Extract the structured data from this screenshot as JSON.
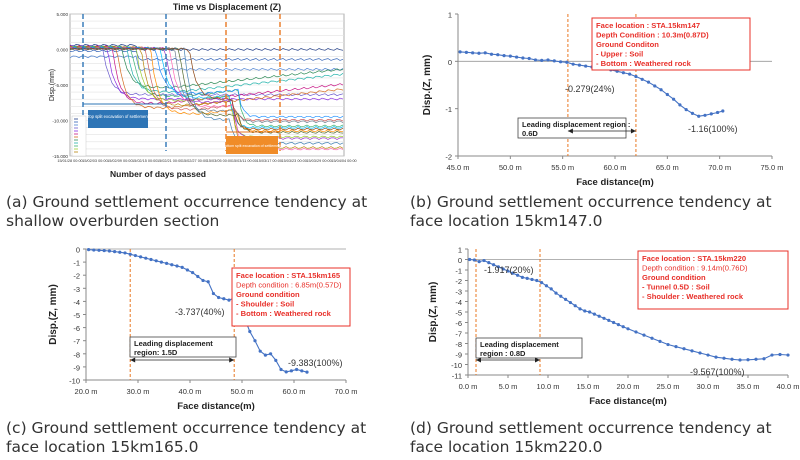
{
  "captions": {
    "a": "(a) Ground settlement occurrence tendency at shallow overburden section",
    "b": "(b) Ground settlement occurrence tendency at face location 15km147.0",
    "c": "(c) Ground settlement occurrence tendency at face location 15km165.0",
    "d": "(d) Ground settlement occurrence tendency at face location 15km220.0"
  },
  "colors": {
    "series": "#4472c4",
    "annotation_red": "#e8302a",
    "dashed_orange": "#e87722",
    "label_box_blue": "#2e75b6",
    "label_box_orange": "#f08c28"
  },
  "chart_data": [
    {
      "id": "a",
      "type": "line",
      "title": "Time vs Displacement (Z)",
      "xlabel": "Number of days passed",
      "ylabel": "Disp.(mm)",
      "ylim": [
        -15,
        5
      ],
      "y_ticks": [
        "5.000",
        "0.000",
        "-5.000",
        "-10.000",
        "-15.000"
      ],
      "x_ticks": [
        "15/01/28 00:00",
        "15/02/03 00:00",
        "15/02/09 00:00",
        "15/02/15 00:00",
        "15/02/21 00:00",
        "15/02/27 00:00",
        "15/03/05 00:00",
        "15/03/11 00:00",
        "15/03/17 00:00",
        "15/03/23 00:00",
        "15/03/29 00:00",
        "15/04/04 00:00"
      ],
      "annotations": [
        "Top split excavation of settlement",
        "Bottom split excavation of settlement"
      ],
      "legend_position": "bottom-left",
      "series_count": 22,
      "grid": true
    },
    {
      "id": "b",
      "type": "scatter-line",
      "xlabel": "Face distance(m)",
      "ylabel": "Disp.(Z, mm)",
      "xlim": [
        45,
        75
      ],
      "ylim": [
        -2,
        1
      ],
      "x_ticks": [
        "45.0 m",
        "50.0 m",
        "55.0 m",
        "60.0 m",
        "65.0 m",
        "70.0 m",
        "75.0 m"
      ],
      "y_ticks": [
        "1",
        "0",
        "-1",
        "-2"
      ],
      "info_box": [
        "Face location : STA.15km147",
        "Depth Condition : 10.3m(0.87D)",
        "Ground Conditon",
        "- Upper : Soil",
        "- Bottom : Weathered rock"
      ],
      "labels": {
        "mid": "-0.279(24%)",
        "end": "-1.16(100%)"
      },
      "leading_label": [
        "Leading displacement region :",
        "0.6D"
      ],
      "dashed_x": [
        55.5,
        62.0
      ],
      "x": [
        45.2,
        45.8,
        46.4,
        47.0,
        47.6,
        48.2,
        48.8,
        49.4,
        50.0,
        50.6,
        51.2,
        51.8,
        52.4,
        53.0,
        53.6,
        54.2,
        54.8,
        55.4,
        56.0,
        56.6,
        57.2,
        57.8,
        58.4,
        59.0,
        59.6,
        60.2,
        60.8,
        61.4,
        62.0,
        62.6,
        63.2,
        63.8,
        64.4,
        65.0,
        65.6,
        66.2,
        66.8,
        67.4,
        68.0,
        68.6,
        69.2,
        69.8,
        70.3
      ],
      "y": [
        0.2,
        0.19,
        0.18,
        0.17,
        0.18,
        0.15,
        0.14,
        0.12,
        0.11,
        0.09,
        0.07,
        0.06,
        0.03,
        0.02,
        0.03,
        0.01,
        -0.01,
        -0.02,
        -0.06,
        -0.08,
        -0.1,
        -0.12,
        -0.14,
        -0.16,
        -0.18,
        -0.21,
        -0.24,
        -0.27,
        -0.32,
        -0.38,
        -0.44,
        -0.52,
        -0.6,
        -0.7,
        -0.8,
        -0.92,
        -1.02,
        -1.1,
        -1.16,
        -1.14,
        -1.11,
        -1.08,
        -1.05
      ]
    },
    {
      "id": "c",
      "type": "scatter-line",
      "xlabel": "Face distance(m)",
      "ylabel": "Disp.(Z, mm)",
      "xlim": [
        20,
        70
      ],
      "ylim": [
        -10,
        0
      ],
      "x_ticks": [
        "20.0 m",
        "30.0 m",
        "40.0 m",
        "50.0 m",
        "60.0 m",
        "70.0 m"
      ],
      "y_ticks": [
        "0",
        "-1",
        "-2",
        "-3",
        "-4",
        "-5",
        "-6",
        "-7",
        "-8",
        "-9",
        "-10"
      ],
      "info_box": [
        "Face location : STA.15km165",
        "Depth condition : 6.85m(0.57D)",
        "Ground condition",
        "- Shoulder : Soil",
        "- Bottom : Weathered rock"
      ],
      "labels": {
        "mid": "-3.737(40%)",
        "end": "-9.383(100%)"
      },
      "leading_label": [
        "Leading displacement",
        "region: 1.5D"
      ],
      "dashed_x": [
        28.5,
        48.5
      ],
      "x": [
        20.5,
        21.5,
        22.5,
        23.5,
        24.5,
        25.5,
        26.5,
        27.5,
        28.5,
        29.5,
        30.5,
        31.5,
        32.5,
        33.5,
        34.5,
        35.5,
        36.5,
        37.5,
        38.5,
        39.5,
        40.5,
        41.5,
        42.5,
        43.5,
        44.5,
        45.5,
        46.5,
        47.5,
        48.5,
        49.5,
        50.5,
        51.5,
        52.5,
        53.5,
        54.5,
        55.5,
        56.5,
        57.5,
        58.5,
        59.5,
        60.5,
        61.5,
        62.5
      ],
      "y": [
        -0.05,
        -0.08,
        -0.1,
        -0.12,
        -0.15,
        -0.2,
        -0.25,
        -0.3,
        -0.4,
        -0.5,
        -0.6,
        -0.7,
        -0.8,
        -0.9,
        -1.0,
        -1.1,
        -1.2,
        -1.3,
        -1.4,
        -1.6,
        -1.8,
        -2.1,
        -2.4,
        -2.5,
        -3.4,
        -3.7,
        -3.8,
        -3.9,
        -3.74,
        -4.3,
        -5.3,
        -6.3,
        -7.0,
        -7.8,
        -8.1,
        -8.0,
        -8.5,
        -9.2,
        -9.38,
        -9.3,
        -9.2,
        -9.3,
        -9.4
      ]
    },
    {
      "id": "d",
      "type": "scatter-line",
      "xlabel": "Face distance(m)",
      "ylabel": "Disp.(Z, mm)",
      "xlim": [
        0,
        40
      ],
      "ylim": [
        -11,
        1
      ],
      "x_ticks": [
        "0.0 m",
        "5.0 m",
        "10.0 m",
        "15.0 m",
        "20.0 m",
        "25.0 m",
        "30.0 m",
        "35.0 m",
        "40.0 m"
      ],
      "y_ticks": [
        "1",
        "0",
        "-1",
        "-2",
        "-3",
        "-4",
        "-5",
        "-6",
        "-7",
        "-8",
        "-9",
        "-10",
        "-11"
      ],
      "info_box": [
        "Face location : STA.15km220",
        "Depth condition : 9.14m(0.76D)",
        "Ground condition",
        "- Tunnel 0.5D : Soil",
        "- Shoulder : Weathered rock"
      ],
      "labels": {
        "mid": "-1.917(20%)",
        "end": "-9.567(100%)"
      },
      "leading_label": [
        "Leading displacement",
        "region : 0.8D"
      ],
      "dashed_x": [
        1.0,
        9.0
      ],
      "x": [
        0.2,
        0.8,
        1.4,
        2.0,
        2.6,
        3.2,
        3.8,
        4.4,
        5.0,
        5.6,
        6.2,
        6.8,
        7.4,
        8.0,
        8.6,
        9.2,
        9.8,
        10.4,
        11.0,
        11.6,
        12.2,
        12.8,
        13.4,
        14.0,
        14.6,
        15.2,
        15.8,
        16.4,
        17.0,
        17.6,
        18.2,
        18.8,
        19.4,
        20.0,
        21.0,
        22.0,
        23.0,
        24.0,
        25.0,
        26.0,
        27.0,
        28.0,
        29.0,
        30.0,
        31.0,
        32.0,
        33.0,
        34.0,
        35.0,
        36.0,
        37.0,
        38.0,
        39.0,
        40.0
      ],
      "y": [
        0.0,
        -0.05,
        -0.2,
        -0.1,
        -0.3,
        -0.5,
        -0.7,
        -0.9,
        -1.1,
        -1.3,
        -1.5,
        -1.7,
        -1.8,
        -1.9,
        -2.0,
        -2.2,
        -2.5,
        -2.8,
        -3.2,
        -3.5,
        -3.8,
        -4.1,
        -4.4,
        -4.7,
        -4.9,
        -5.0,
        -5.2,
        -5.4,
        -5.6,
        -5.8,
        -6.0,
        -6.2,
        -6.4,
        -6.6,
        -6.9,
        -7.2,
        -7.5,
        -7.8,
        -8.1,
        -8.3,
        -8.5,
        -8.7,
        -8.9,
        -9.1,
        -9.3,
        -9.4,
        -9.5,
        -9.57,
        -9.55,
        -9.5,
        -9.45,
        -9.1,
        -9.05,
        -9.1
      ]
    }
  ]
}
